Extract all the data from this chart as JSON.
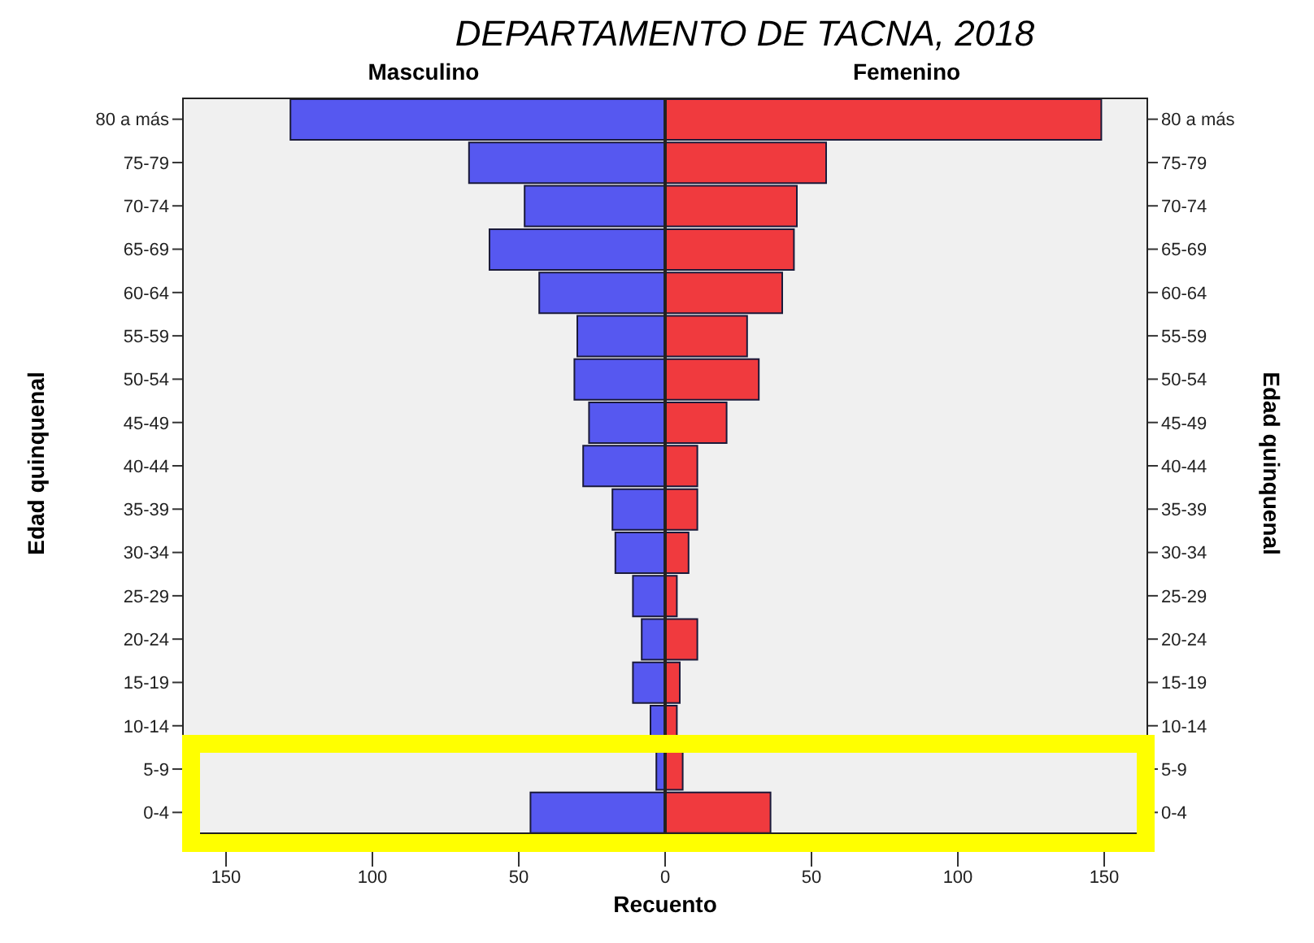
{
  "chart_data": [
    {
      "type": "bar",
      "orientation": "horizontal",
      "title": "DEPARTAMENTO DE TACNA, 2018",
      "subtitle": "Masculino",
      "ylabel": "Edad quinquenal",
      "categories": [
        "80 a más",
        "75-79",
        "70-74",
        "65-69",
        "60-64",
        "55-59",
        "50-54",
        "45-49",
        "40-44",
        "35-39",
        "30-34",
        "25-29",
        "20-24",
        "15-19",
        "10-14",
        "5-9",
        "0-4"
      ],
      "values": [
        128,
        67,
        48,
        60,
        43,
        30,
        31,
        26,
        28,
        18,
        17,
        11,
        8,
        11,
        5,
        3,
        46
      ],
      "color": "#5658f0",
      "xlim": [
        165,
        0
      ],
      "xticks": [
        150,
        100,
        50,
        {
          "value": 0,
          "label": null
        }
      ],
      "grid": false
    },
    {
      "type": "bar",
      "orientation": "horizontal",
      "subtitle": "Femenino",
      "y2label": "Edad quinquenal",
      "xlabel": "Recuento",
      "categories": [
        "80 a más",
        "75-79",
        "70-74",
        "65-69",
        "60-64",
        "55-59",
        "50-54",
        "45-49",
        "40-44",
        "35-39",
        "30-34",
        "25-29",
        "20-24",
        "15-19",
        "10-14",
        "5-9",
        "0-4"
      ],
      "values": [
        149,
        55,
        45,
        44,
        40,
        28,
        32,
        21,
        11,
        11,
        8,
        4,
        11,
        5,
        4,
        6,
        36
      ],
      "color": "#f03a3e",
      "xlim": [
        0,
        165
      ],
      "xticks": [
        0,
        50,
        100,
        150
      ],
      "grid": false
    }
  ]
}
